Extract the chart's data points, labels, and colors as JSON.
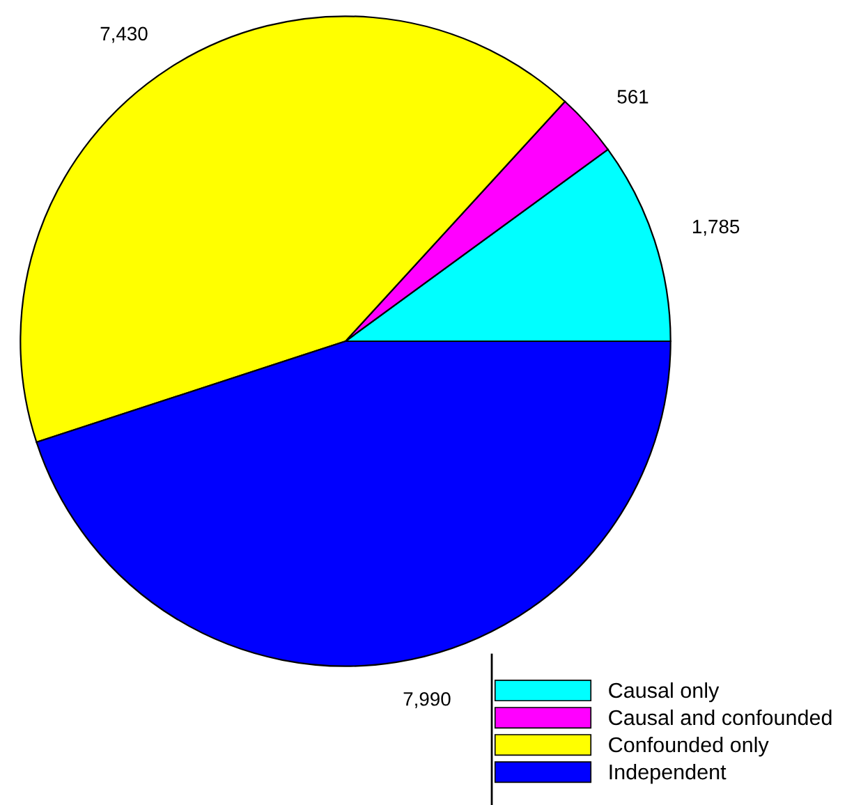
{
  "chart_data": {
    "type": "pie",
    "categories": [
      "Causal only",
      "Causal and confounded",
      "Confounded only",
      "Independent"
    ],
    "values": [
      1785,
      561,
      7430,
      7990
    ],
    "value_labels": [
      "1,785",
      "561",
      "7,430",
      "7,990"
    ],
    "colors": [
      "#00ffff",
      "#ff00ff",
      "#ffff00",
      "#0000ff"
    ],
    "legend": "bottom right"
  }
}
